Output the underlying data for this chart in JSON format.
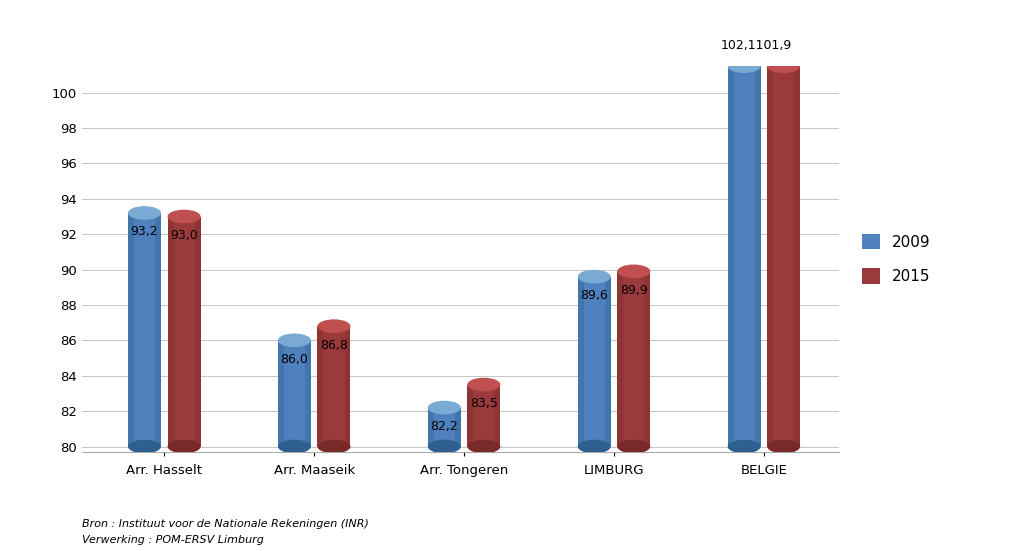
{
  "categories": [
    "Arr. Hasselt",
    "Arr. Maaseik",
    "Arr. Tongeren",
    "LIMBURG",
    "BELGIE"
  ],
  "values_2009": [
    93.2,
    86.0,
    82.2,
    89.6,
    102.1
  ],
  "values_2015": [
    93.0,
    86.8,
    83.5,
    89.9,
    101.9
  ],
  "labels_2009": [
    "93,2",
    "86,0",
    "82,2",
    "89,6",
    ""
  ],
  "labels_2015": [
    "93,0",
    "86,8",
    "83,5",
    "89,9",
    ""
  ],
  "color_2009": "#4E81BD",
  "color_2015": "#9B3A3A",
  "color_2009_dark": "#2E5F8E",
  "color_2015_dark": "#7A2929",
  "color_2009_top": "#7AAAD4",
  "color_2015_top": "#C05050",
  "ylim_min": 80,
  "ylim_max": 101.5,
  "yticks": [
    80,
    82,
    84,
    86,
    88,
    90,
    92,
    94,
    96,
    98,
    100
  ],
  "legend_2009": "2009",
  "legend_2015": "2015",
  "annotation_belgie": "102,1101,9",
  "footnote1": "Bron : Instituut voor de Nationale Rekeningen (INR)",
  "footnote2": "Verwerking : POM-ERSV Limburg",
  "bar_width": 0.22,
  "background_color": "#FFFFFF"
}
